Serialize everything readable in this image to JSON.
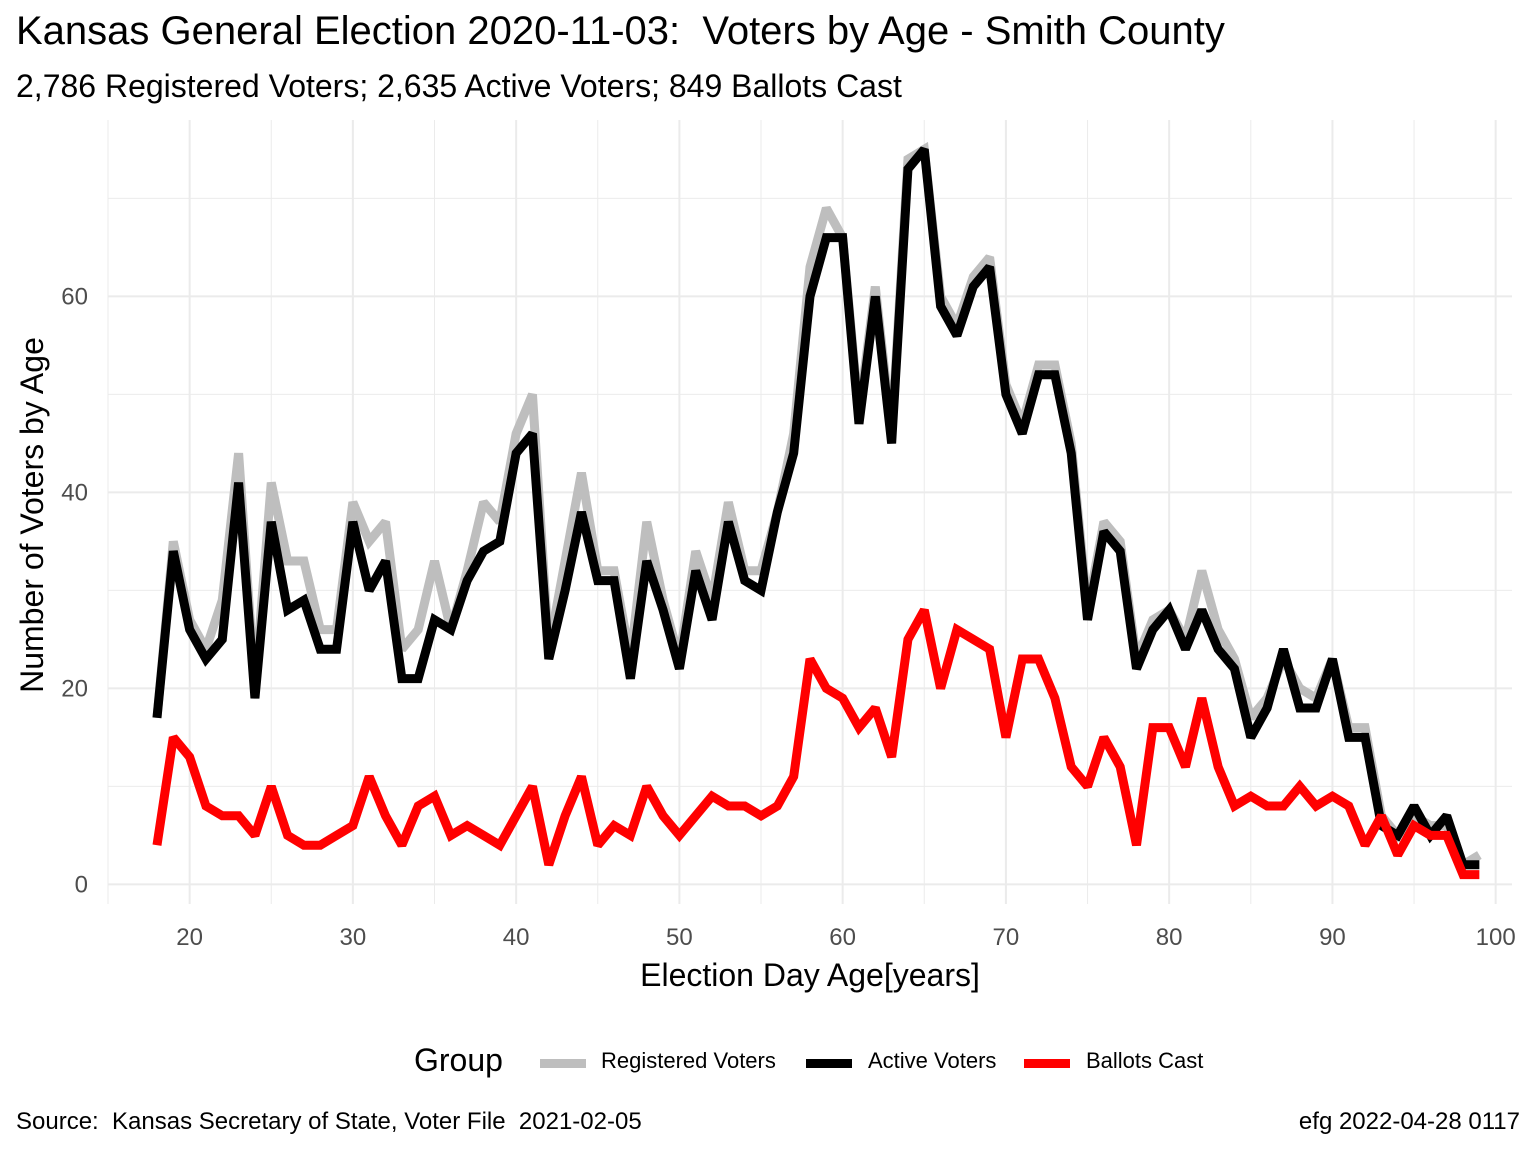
{
  "title": "Kansas General Election 2020-11-03:  Voters by Age - Smith County",
  "subtitle": "2,786 Registered Voters; 2,635 Active Voters; 849 Ballots Cast",
  "caption_left": "Source:  Kansas Secretary of State, Voter File  2021-02-05",
  "caption_right": "efg 2022-04-28 0117",
  "legend": {
    "title": "Group",
    "placement": "bottom",
    "items": [
      "Registered Voters",
      "Active Voters",
      "Ballots Cast"
    ]
  },
  "colors": {
    "registered": "#bebebe",
    "active": "#000000",
    "ballots": "#ff0000",
    "grid": "#ebebeb",
    "axis_text": "#4d4d4d"
  },
  "chart_data": {
    "type": "line",
    "xlabel": "Election Day Age[years]",
    "ylabel": "Number of Voters by Age",
    "xlim": [
      15,
      101
    ],
    "ylim": [
      -2,
      78
    ],
    "x_ticks": [
      20,
      30,
      40,
      50,
      60,
      70,
      80,
      90,
      100
    ],
    "y_ticks": [
      0,
      20,
      40,
      60
    ],
    "grid": true,
    "x": [
      18,
      19,
      20,
      21,
      22,
      23,
      24,
      25,
      26,
      27,
      28,
      29,
      30,
      31,
      32,
      33,
      34,
      35,
      36,
      37,
      38,
      39,
      40,
      41,
      42,
      43,
      44,
      45,
      46,
      47,
      48,
      49,
      50,
      51,
      52,
      53,
      54,
      55,
      56,
      57,
      58,
      59,
      60,
      61,
      62,
      63,
      64,
      65,
      66,
      67,
      68,
      69,
      70,
      71,
      72,
      73,
      74,
      75,
      76,
      77,
      78,
      79,
      80,
      81,
      82,
      83,
      84,
      85,
      86,
      87,
      88,
      89,
      90,
      91,
      92,
      93,
      94,
      95,
      96,
      97,
      98,
      99
    ],
    "series": [
      {
        "name": "Registered Voters",
        "values": [
          17,
          35,
          27,
          24,
          29,
          44,
          20,
          41,
          33,
          33,
          26,
          26,
          39,
          35,
          37,
          24,
          26,
          33,
          26,
          32,
          39,
          37,
          46,
          50,
          24,
          33,
          42,
          32,
          32,
          23,
          37,
          29,
          23,
          34,
          29,
          39,
          32,
          32,
          38,
          46,
          63,
          69,
          66,
          48,
          61,
          46,
          74,
          75,
          60,
          57,
          62,
          64,
          51,
          47,
          53,
          53,
          45,
          28,
          37,
          35,
          23,
          27,
          28,
          25,
          32,
          26,
          23,
          17,
          19,
          23,
          20,
          19,
          23,
          16,
          16,
          7,
          5,
          7,
          6,
          6,
          2,
          3
        ]
      },
      {
        "name": "Active Voters",
        "values": [
          17,
          34,
          26,
          23,
          25,
          41,
          19,
          37,
          28,
          29,
          24,
          24,
          37,
          30,
          33,
          21,
          21,
          27,
          26,
          31,
          34,
          35,
          44,
          46,
          23,
          30,
          38,
          31,
          31,
          21,
          33,
          28,
          22,
          32,
          27,
          37,
          31,
          30,
          38,
          44,
          60,
          66,
          66,
          47,
          60,
          45,
          73,
          75,
          59,
          56,
          61,
          63,
          50,
          46,
          52,
          52,
          44,
          27,
          36,
          34,
          22,
          26,
          28,
          24,
          28,
          24,
          22,
          15,
          18,
          24,
          18,
          18,
          23,
          15,
          15,
          6,
          5,
          8,
          5,
          7,
          2,
          2
        ]
      },
      {
        "name": "Ballots Cast",
        "values": [
          4,
          15,
          13,
          8,
          7,
          7,
          5,
          10,
          5,
          4,
          4,
          5,
          6,
          11,
          7,
          4,
          8,
          9,
          5,
          6,
          5,
          4,
          7,
          10,
          2,
          7,
          11,
          4,
          6,
          5,
          10,
          7,
          5,
          7,
          9,
          8,
          8,
          7,
          8,
          11,
          23,
          20,
          19,
          16,
          18,
          13,
          25,
          28,
          20,
          26,
          25,
          24,
          15,
          23,
          23,
          19,
          12,
          10,
          15,
          12,
          4,
          16,
          16,
          12,
          19,
          12,
          8,
          9,
          8,
          8,
          10,
          8,
          9,
          8,
          4,
          7,
          3,
          6,
          5,
          5,
          1,
          1
        ]
      }
    ]
  }
}
